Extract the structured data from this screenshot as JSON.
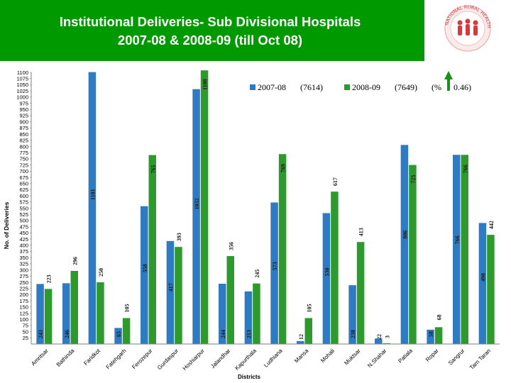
{
  "header": {
    "title_line1": "Institutional Deliveries- Sub Divisional Hospitals",
    "title_line2": "2007-08 & 2008-09 (till Oct 08)",
    "logo_text": "NATIONAL RURAL HEALTH MISSION",
    "logo_subtext": "राष्ट्रीय ग्रामीण स्वास्थ्य मिशन",
    "bg_color": "#009a00"
  },
  "chart_data": {
    "type": "bar",
    "xlabel": "Districts",
    "ylabel": "No. of Deliveries",
    "ylim": [
      0,
      1100
    ],
    "ytick_step": 25,
    "grid": false,
    "legend_position": "top-right",
    "categories": [
      "Amritsar",
      "Bathinda",
      "Faridkot",
      "Fatehgarh",
      "Ferozepur",
      "Gurdaspur",
      "Hoshiarpur",
      "Jalandhar",
      "Kapurthala",
      "Ludhiana",
      "Mansa",
      "Mohali",
      "Muktsar",
      "N.Shahar",
      "Patiala",
      "Ropar",
      "Sangrur",
      "Tarn Taran"
    ],
    "series": [
      {
        "name": "2007-08",
        "total": "(7614)",
        "color": "#2e7bc4",
        "values": [
          243,
          246,
          1101,
          65,
          558,
          417,
          1032,
          244,
          213,
          573,
          12,
          530,
          238,
          22,
          806,
          58,
          766,
          490
        ],
        "labels": [
          "243",
          "246",
          "1101",
          "65",
          "558",
          "417",
          "1032",
          "244",
          "213",
          "573",
          "12",
          "530",
          "238",
          "22",
          "806",
          "58",
          "766",
          "490"
        ]
      },
      {
        "name": "2008-09",
        "total": "(7649)",
        "color": "#2e9a2e",
        "values": [
          223,
          296,
          250,
          105,
          765,
          393,
          1108,
          356,
          245,
          769,
          105,
          617,
          413,
          3,
          725,
          68,
          766,
          442
        ],
        "labels": [
          "223",
          "296",
          "250",
          "105",
          "765",
          "393",
          "1108",
          "356",
          "245",
          "769",
          "105",
          "617",
          "413",
          "3",
          "725",
          "68",
          "766",
          "442"
        ]
      }
    ],
    "growth_note": "(%",
    "growth_value": "0.46)",
    "growth_arrow_color": "#1a8f1a"
  }
}
